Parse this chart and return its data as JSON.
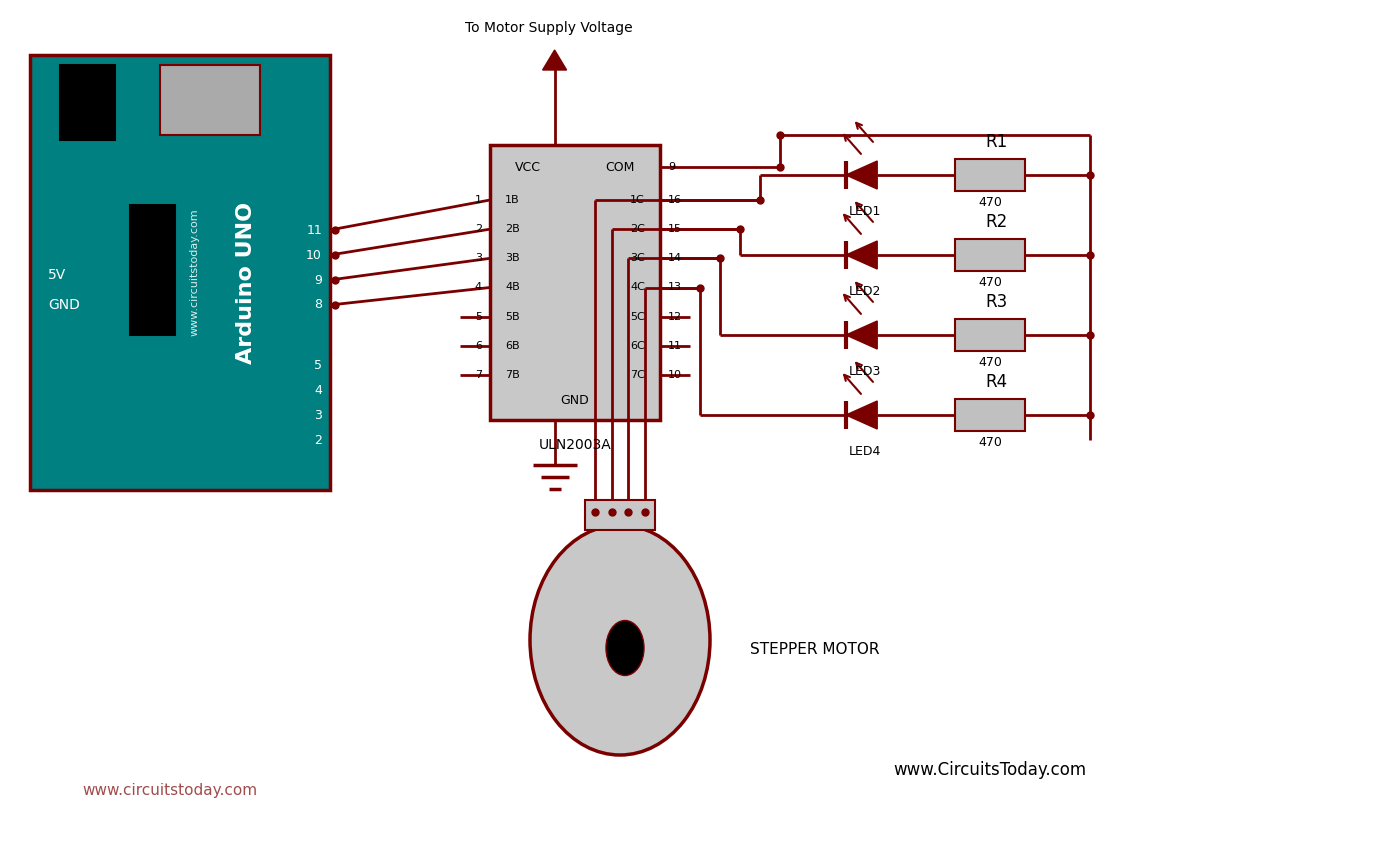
{
  "bg_color": "#ffffff",
  "wire_color": "#7a0000",
  "board_color": "#008080",
  "dark_red": "#7a0000",
  "board_edge": "#8b0000",
  "ic_fill": "#c8c8c8",
  "motor_fill": "#c8c8c8",
  "res_fill": "#c0c0c0",
  "watermark1": "www.circuitstoday.com",
  "watermark2": "www.CircuitsToday.com",
  "supply_text": "To Motor Supply Voltage",
  "ic_label": "ULN2003A",
  "motor_label": "STEPPER MOTOR",
  "pin_labels_left": [
    "1B",
    "2B",
    "3B",
    "4B",
    "5B",
    "6B",
    "7B"
  ],
  "pin_labels_right": [
    "1C",
    "2C",
    "3C",
    "4C",
    "5C",
    "6C",
    "7C"
  ],
  "pin_nums_left": [
    "1",
    "2",
    "3",
    "4",
    "5",
    "6",
    "7"
  ],
  "pin_nums_right": [
    "16",
    "15",
    "14",
    "13",
    "12",
    "11",
    "10"
  ],
  "arduino_pins_top": [
    "11",
    "10",
    "9",
    "8"
  ],
  "arduino_pins_bot": [
    "5",
    "4",
    "3",
    "2"
  ],
  "res_labels": [
    "R1",
    "R2",
    "R3",
    "R4"
  ],
  "led_labels": [
    "LED1",
    "LED2",
    "LED3",
    "LED4"
  ]
}
